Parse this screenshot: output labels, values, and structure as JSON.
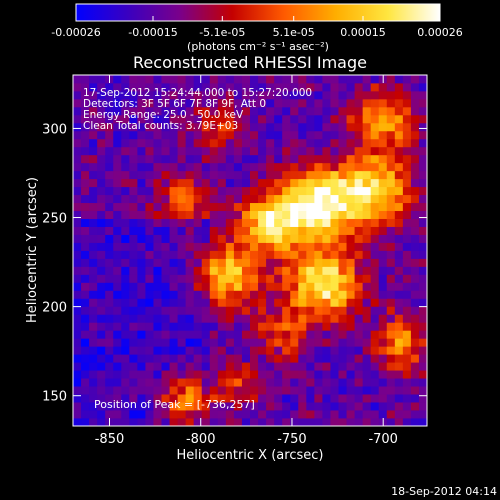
{
  "colorbar": {
    "ticks": [
      "-0.00026",
      "-0.00015",
      "-5.1e-05",
      "5.1e-05",
      "0.00015",
      "0.00026"
    ],
    "tick_values": [
      -0.00026,
      -0.00015,
      -5.1e-05,
      5.1e-05,
      0.00015,
      0.00026
    ],
    "range": [
      -0.00026,
      0.00026
    ],
    "units": "(photons cm⁻² s⁻¹ asec⁻²)",
    "colormap": [
      "#0000ff",
      "#3a00c0",
      "#7a008a",
      "#c40000",
      "#ff5a00",
      "#ffae00",
      "#ffe640",
      "#ffffff"
    ]
  },
  "chart_data": {
    "type": "heatmap",
    "title": "Reconstructed RHESSI Image",
    "xlabel": "Heliocentric X (arcsec)",
    "ylabel": "Heliocentric Y (arcsec)",
    "xlim": [
      -870,
      -676
    ],
    "ylim": [
      133,
      330
    ],
    "xticks": [
      -850,
      -800,
      -750,
      -700
    ],
    "yticks": [
      150,
      200,
      250,
      300
    ],
    "info_lines": [
      "17-Sep-2012 15:24:44.000 to 15:27:20.000",
      "Detectors: 3F 5F 6F 7F 8F 9F, Att 0",
      "Energy Range: 25.0 - 50.0 keV",
      "Clean      Total counts: 3.79E+03"
    ],
    "peak_label": "Position of Peak = [-736,257]",
    "peak": [
      -736,
      257
    ],
    "sources": [
      {
        "x": -736,
        "y": 257,
        "sigma": 14,
        "amp": 1.0
      },
      {
        "x": -733,
        "y": 213,
        "sigma": 13,
        "amp": 0.95
      },
      {
        "x": -762,
        "y": 247,
        "sigma": 12,
        "amp": 0.8
      },
      {
        "x": -785,
        "y": 218,
        "sigma": 13,
        "amp": 0.7
      },
      {
        "x": -705,
        "y": 265,
        "sigma": 14,
        "amp": 0.85
      },
      {
        "x": -700,
        "y": 305,
        "sigma": 12,
        "amp": 0.6
      },
      {
        "x": -690,
        "y": 180,
        "sigma": 11,
        "amp": 0.55
      },
      {
        "x": -808,
        "y": 148,
        "sigma": 10,
        "amp": 0.6
      },
      {
        "x": -755,
        "y": 185,
        "sigma": 10,
        "amp": 0.4
      },
      {
        "x": -810,
        "y": 260,
        "sigma": 10,
        "amp": 0.45
      },
      {
        "x": -790,
        "y": 300,
        "sigma": 9,
        "amp": 0.35
      },
      {
        "x": -780,
        "y": 155,
        "sigma": 9,
        "amp": 0.35
      }
    ]
  },
  "timestamp": "18-Sep-2012 04:14"
}
